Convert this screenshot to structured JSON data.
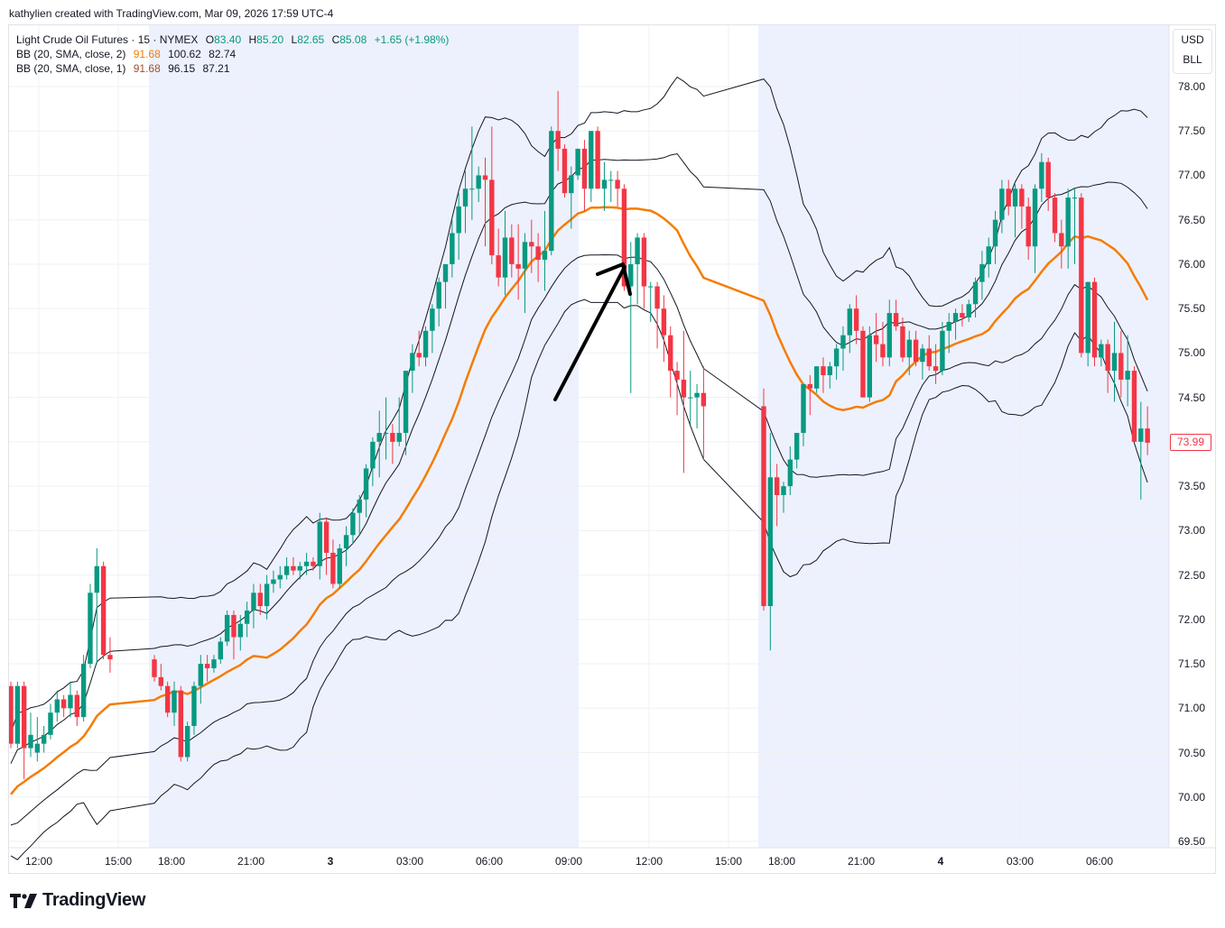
{
  "credit": "kathylien created with TradingView.com, Mar 09, 2026 17:59 UTC-4",
  "legend": {
    "symbol": "Light Crude Oil Futures · 15 · NYMEX",
    "o_label": "O",
    "o_value": "83.40",
    "h_label": "H",
    "h_value": "85.20",
    "l_label": "L",
    "l_value": "82.65",
    "c_label": "C",
    "c_value": "85.08",
    "change": "+1.65 (+1.98%)",
    "bb1_label": "BB (20, SMA, close, 2)",
    "bb1_basis": "91.68",
    "bb1_upper": "100.62",
    "bb1_lower": "82.74",
    "bb2_label": "BB (20, SMA, close, 1)",
    "bb2_basis": "91.68",
    "bb2_upper": "96.15",
    "bb2_lower": "87.21"
  },
  "unit": {
    "currency": "USD",
    "unit": "BLL"
  },
  "last_price": "73.99",
  "logo_text": "TradingView",
  "colors": {
    "up": "#089981",
    "down": "#f23645",
    "basis": "#f57c00",
    "bands": "#131722",
    "session_shade": "#edf1fd",
    "grid": "#eef0f3",
    "arrow": "#000000"
  },
  "chart_data": {
    "type": "candlestick",
    "title": "Light Crude Oil Futures · 15 · NYMEX",
    "xlabel": "",
    "ylabel": "USD/BLL",
    "ylim": [
      69.3,
      78.7
    ],
    "y_ticks": [
      "78.00",
      "77.50",
      "77.00",
      "76.50",
      "76.00",
      "75.50",
      "75.00",
      "74.50",
      "74.00",
      "73.50",
      "73.00",
      "72.50",
      "72.00",
      "71.50",
      "71.00",
      "70.50",
      "70.00",
      "69.50"
    ],
    "x_ticks": [
      {
        "label": "12:00",
        "x": 43,
        "bold": false
      },
      {
        "label": "15:00",
        "x": 131,
        "bold": false
      },
      {
        "label": "18:00",
        "x": 190,
        "bold": false
      },
      {
        "label": "21:00",
        "x": 278,
        "bold": false
      },
      {
        "label": "3",
        "x": 366,
        "bold": true
      },
      {
        "label": "03:00",
        "x": 454,
        "bold": false
      },
      {
        "label": "06:00",
        "x": 542,
        "bold": false
      },
      {
        "label": "09:00",
        "x": 630,
        "bold": false
      },
      {
        "label": "12:00",
        "x": 719,
        "bold": false
      },
      {
        "label": "15:00",
        "x": 807,
        "bold": false
      },
      {
        "label": "18:00",
        "x": 866,
        "bold": false
      },
      {
        "label": "21:00",
        "x": 954,
        "bold": false
      },
      {
        "label": "4",
        "x": 1042,
        "bold": true
      },
      {
        "label": "03:00",
        "x": 1130,
        "bold": false
      },
      {
        "label": "06:00",
        "x": 1218,
        "bold": false
      }
    ],
    "session_shading": [
      [
        165,
        641
      ],
      [
        840,
        1295
      ]
    ],
    "candles_ohlc": [
      [
        71.25,
        71.3,
        70.55,
        70.6
      ],
      [
        70.6,
        71.3,
        70.55,
        71.25
      ],
      [
        71.25,
        71.3,
        70.2,
        70.55
      ],
      [
        70.55,
        70.95,
        70.45,
        70.7
      ],
      [
        70.5,
        70.9,
        70.4,
        70.6
      ],
      [
        70.6,
        70.8,
        70.5,
        70.7
      ],
      [
        70.7,
        71.05,
        70.65,
        70.95
      ],
      [
        70.95,
        71.2,
        70.85,
        71.1
      ],
      [
        71.1,
        71.15,
        70.9,
        71.0
      ],
      [
        71.0,
        71.3,
        70.9,
        71.15
      ],
      [
        71.15,
        71.2,
        70.8,
        70.9
      ],
      [
        70.9,
        71.6,
        70.85,
        71.5
      ],
      [
        71.5,
        72.4,
        71.45,
        72.3
      ],
      [
        72.3,
        72.8,
        71.5,
        72.6
      ],
      [
        72.6,
        72.65,
        71.55,
        71.6
      ],
      [
        71.6,
        71.8,
        71.4,
        71.55
      ],
      [
        71.55,
        71.6,
        71.3,
        71.35
      ],
      [
        71.35,
        71.5,
        71.2,
        71.25
      ],
      [
        71.25,
        71.3,
        70.9,
        70.95
      ],
      [
        70.95,
        71.3,
        70.8,
        71.2
      ],
      [
        71.2,
        71.25,
        70.4,
        70.45
      ],
      [
        70.45,
        70.85,
        70.4,
        70.8
      ],
      [
        70.8,
        71.3,
        70.7,
        71.25
      ],
      [
        71.25,
        71.6,
        71.05,
        71.5
      ],
      [
        71.5,
        71.6,
        71.3,
        71.45
      ],
      [
        71.45,
        71.6,
        71.4,
        71.55
      ],
      [
        71.55,
        71.8,
        71.5,
        71.75
      ],
      [
        71.75,
        72.1,
        71.7,
        72.05
      ],
      [
        72.05,
        72.1,
        71.55,
        71.8
      ],
      [
        71.8,
        72.05,
        71.65,
        71.95
      ],
      [
        71.95,
        72.2,
        71.8,
        72.1
      ],
      [
        72.1,
        72.4,
        71.9,
        72.3
      ],
      [
        72.3,
        72.4,
        72.05,
        72.15
      ],
      [
        72.15,
        72.5,
        72.0,
        72.4
      ],
      [
        72.4,
        72.55,
        72.3,
        72.45
      ],
      [
        72.45,
        72.6,
        72.35,
        72.5
      ],
      [
        72.5,
        72.7,
        72.45,
        72.6
      ],
      [
        72.6,
        72.7,
        72.5,
        72.55
      ],
      [
        72.55,
        72.65,
        72.45,
        72.6
      ],
      [
        72.6,
        72.75,
        72.5,
        72.65
      ],
      [
        72.65,
        72.7,
        72.55,
        72.6
      ],
      [
        72.6,
        73.2,
        72.45,
        73.1
      ],
      [
        73.1,
        73.15,
        72.5,
        72.75
      ],
      [
        72.75,
        72.9,
        72.35,
        72.4
      ],
      [
        72.4,
        72.85,
        72.35,
        72.8
      ],
      [
        72.8,
        73.05,
        72.6,
        72.95
      ],
      [
        72.95,
        73.25,
        72.85,
        73.2
      ],
      [
        73.2,
        73.4,
        72.95,
        73.35
      ],
      [
        73.35,
        73.75,
        73.15,
        73.7
      ],
      [
        73.7,
        74.05,
        73.5,
        74.0
      ],
      [
        74.0,
        74.35,
        73.6,
        74.1
      ],
      [
        74.1,
        74.5,
        73.8,
        74.1
      ],
      [
        74.1,
        74.2,
        73.75,
        74.0
      ],
      [
        74.0,
        74.5,
        73.95,
        74.1
      ],
      [
        74.1,
        74.8,
        73.85,
        74.8
      ],
      [
        74.8,
        75.1,
        74.55,
        75.0
      ],
      [
        75.0,
        75.25,
        74.85,
        74.95
      ],
      [
        74.95,
        75.3,
        74.85,
        75.25
      ],
      [
        75.25,
        75.55,
        75.0,
        75.5
      ],
      [
        75.5,
        75.85,
        75.3,
        75.8
      ],
      [
        75.8,
        76.0,
        75.5,
        76.0
      ],
      [
        76.0,
        76.5,
        75.85,
        76.35
      ],
      [
        76.35,
        76.8,
        76.05,
        76.65
      ],
      [
        76.65,
        77.05,
        76.35,
        76.85
      ],
      [
        76.85,
        77.55,
        76.5,
        76.85
      ],
      [
        76.85,
        77.1,
        76.7,
        77.0
      ],
      [
        77.0,
        77.2,
        76.2,
        76.95
      ],
      [
        76.95,
        77.55,
        76.0,
        76.1
      ],
      [
        76.1,
        76.4,
        75.75,
        75.85
      ],
      [
        75.85,
        76.6,
        75.65,
        76.3
      ],
      [
        76.3,
        76.45,
        75.85,
        76.0
      ],
      [
        76.0,
        76.45,
        75.6,
        75.95
      ],
      [
        75.95,
        76.35,
        75.45,
        76.25
      ],
      [
        76.25,
        76.5,
        75.9,
        76.2
      ],
      [
        76.2,
        76.35,
        75.8,
        76.05
      ],
      [
        76.05,
        76.6,
        75.7,
        76.15
      ],
      [
        76.15,
        77.55,
        76.1,
        77.5
      ],
      [
        77.5,
        77.95,
        77.05,
        77.3
      ],
      [
        77.3,
        77.35,
        76.75,
        76.8
      ],
      [
        76.8,
        77.1,
        76.4,
        77.0
      ],
      [
        77.0,
        77.3,
        76.95,
        77.3
      ],
      [
        77.3,
        77.4,
        76.6,
        76.85
      ],
      [
        76.85,
        77.5,
        76.7,
        77.5
      ],
      [
        77.5,
        77.55,
        76.85,
        76.85
      ],
      [
        76.85,
        77.15,
        76.6,
        76.95
      ],
      [
        76.95,
        77.05,
        76.7,
        76.95
      ],
      [
        76.95,
        77.05,
        76.65,
        76.85
      ],
      [
        76.85,
        76.9,
        75.7,
        75.75
      ],
      [
        75.75,
        76.25,
        74.55,
        76.0
      ],
      [
        76.0,
        76.35,
        75.55,
        76.3
      ],
      [
        76.3,
        76.35,
        75.5,
        75.75
      ],
      [
        75.75,
        75.8,
        75.35,
        75.75
      ],
      [
        75.75,
        75.8,
        75.05,
        75.5
      ],
      [
        75.5,
        75.65,
        74.9,
        75.2
      ],
      [
        75.2,
        75.3,
        74.5,
        74.8
      ],
      [
        74.8,
        74.9,
        74.3,
        74.7
      ],
      [
        74.7,
        75.25,
        73.65,
        74.5
      ],
      [
        74.5,
        74.8,
        74.2,
        74.5
      ],
      [
        74.5,
        74.65,
        74.15,
        74.55
      ],
      [
        74.55,
        74.85,
        73.8,
        74.4
      ],
      [
        74.4,
        74.6,
        72.1,
        72.15
      ],
      [
        72.15,
        74.1,
        71.65,
        73.6
      ],
      [
        73.6,
        73.75,
        73.05,
        73.4
      ],
      [
        73.4,
        73.55,
        73.2,
        73.5
      ],
      [
        73.5,
        73.95,
        73.4,
        73.8
      ],
      [
        73.8,
        74.1,
        73.7,
        74.1
      ],
      [
        74.1,
        74.6,
        73.95,
        74.65
      ],
      [
        74.65,
        74.75,
        74.3,
        74.6
      ],
      [
        74.6,
        74.85,
        74.55,
        74.85
      ],
      [
        74.85,
        74.95,
        74.55,
        74.75
      ],
      [
        74.75,
        74.9,
        74.6,
        74.85
      ],
      [
        74.85,
        75.1,
        74.7,
        75.05
      ],
      [
        75.05,
        75.3,
        74.8,
        75.2
      ],
      [
        75.2,
        75.55,
        75.0,
        75.5
      ],
      [
        75.5,
        75.65,
        75.1,
        75.25
      ],
      [
        75.25,
        75.3,
        74.5,
        74.5
      ],
      [
        74.5,
        75.3,
        74.45,
        75.2
      ],
      [
        75.2,
        75.45,
        74.9,
        75.1
      ],
      [
        75.1,
        75.35,
        74.85,
        74.95
      ],
      [
        74.95,
        75.6,
        74.85,
        75.45
      ],
      [
        75.45,
        75.6,
        75.25,
        75.3
      ],
      [
        75.3,
        75.4,
        74.9,
        74.95
      ],
      [
        74.95,
        75.25,
        74.75,
        75.15
      ],
      [
        75.15,
        75.25,
        74.85,
        74.9
      ],
      [
        74.9,
        75.1,
        74.7,
        75.05
      ],
      [
        75.05,
        75.2,
        74.8,
        74.85
      ],
      [
        74.85,
        75.1,
        74.65,
        74.8
      ],
      [
        74.8,
        75.35,
        74.75,
        75.25
      ],
      [
        75.25,
        75.45,
        75.0,
        75.35
      ],
      [
        75.35,
        75.5,
        75.15,
        75.45
      ],
      [
        75.45,
        75.55,
        75.3,
        75.4
      ],
      [
        75.4,
        75.6,
        75.35,
        75.55
      ],
      [
        75.55,
        75.85,
        75.4,
        75.8
      ],
      [
        75.8,
        76.15,
        75.6,
        76.0
      ],
      [
        76.0,
        76.3,
        75.85,
        76.2
      ],
      [
        76.2,
        76.6,
        76.0,
        76.5
      ],
      [
        76.5,
        76.95,
        76.35,
        76.85
      ],
      [
        76.85,
        76.95,
        76.55,
        76.65
      ],
      [
        76.65,
        76.9,
        76.3,
        76.85
      ],
      [
        76.85,
        76.9,
        76.4,
        76.65
      ],
      [
        76.65,
        76.75,
        76.05,
        76.2
      ],
      [
        76.2,
        76.9,
        75.9,
        76.85
      ],
      [
        76.85,
        77.25,
        76.7,
        77.15
      ],
      [
        77.15,
        77.2,
        76.6,
        76.75
      ],
      [
        76.75,
        76.8,
        76.25,
        76.35
      ],
      [
        76.35,
        76.5,
        75.95,
        76.2
      ],
      [
        76.2,
        76.85,
        75.95,
        76.75
      ],
      [
        76.75,
        76.85,
        76.0,
        76.75
      ],
      [
        76.75,
        76.8,
        74.95,
        75.0
      ],
      [
        75.0,
        75.8,
        74.85,
        75.8
      ],
      [
        75.8,
        75.85,
        74.85,
        74.95
      ],
      [
        74.95,
        75.15,
        74.85,
        75.1
      ],
      [
        75.1,
        75.15,
        74.55,
        74.8
      ],
      [
        74.8,
        75.35,
        74.45,
        75.0
      ],
      [
        75.0,
        75.25,
        74.5,
        74.7
      ],
      [
        74.7,
        75.2,
        74.4,
        74.8
      ],
      [
        74.8,
        74.85,
        74.0,
        74.0
      ],
      [
        74.0,
        74.45,
        73.35,
        74.15
      ],
      [
        74.15,
        74.4,
        73.85,
        73.99
      ]
    ]
  }
}
